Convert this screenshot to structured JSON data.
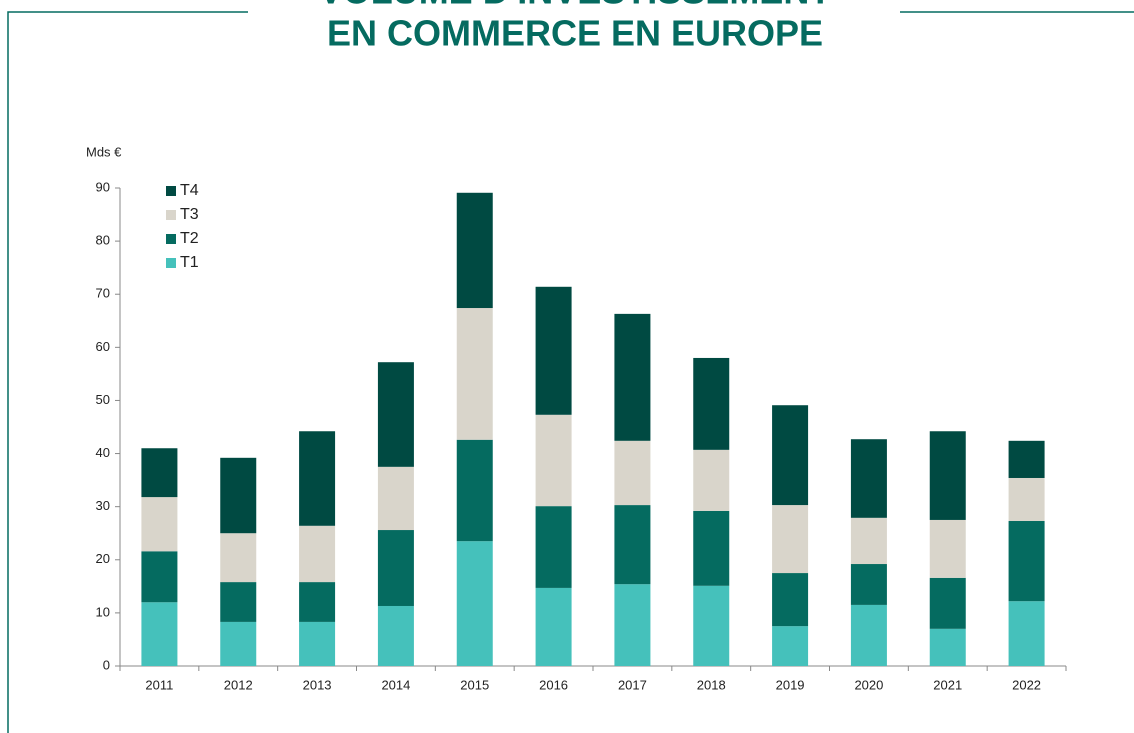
{
  "chart_data": {
    "type": "stacked_bar",
    "title": [
      "VOLUME D'INVESTISSEMENT",
      "EN COMMERCE EN EUROPE"
    ],
    "y_label": "Mds €",
    "categories": [
      "2011",
      "2012",
      "2013",
      "2014",
      "2015",
      "2016",
      "2017",
      "2018",
      "2019",
      "2020",
      "2021",
      "2022"
    ],
    "series": [
      {
        "name": "T1",
        "color": "#45c1bb",
        "values": [
          12.0,
          8.3,
          8.3,
          11.3,
          23.5,
          14.7,
          15.4,
          15.1,
          7.5,
          11.5,
          7.0,
          12.2
        ]
      },
      {
        "name": "T2",
        "color": "#056b60",
        "values": [
          9.6,
          7.5,
          7.5,
          14.3,
          19.1,
          15.4,
          14.9,
          14.1,
          10.0,
          7.7,
          9.6,
          15.1
        ]
      },
      {
        "name": "T3",
        "color": "#d9d5cb",
        "values": [
          10.2,
          9.2,
          10.6,
          11.9,
          24.8,
          17.2,
          12.1,
          11.5,
          12.8,
          8.7,
          10.9,
          8.1
        ]
      },
      {
        "name": "T4",
        "color": "#004a42",
        "values": [
          9.2,
          14.2,
          17.8,
          19.7,
          21.7,
          24.1,
          23.9,
          17.3,
          18.8,
          14.8,
          16.7,
          7.0
        ]
      }
    ],
    "ylim": [
      0,
      90
    ],
    "yticks": [
      0,
      10,
      20,
      30,
      40,
      50,
      60,
      70,
      80,
      90
    ],
    "legend": "upper-left"
  }
}
